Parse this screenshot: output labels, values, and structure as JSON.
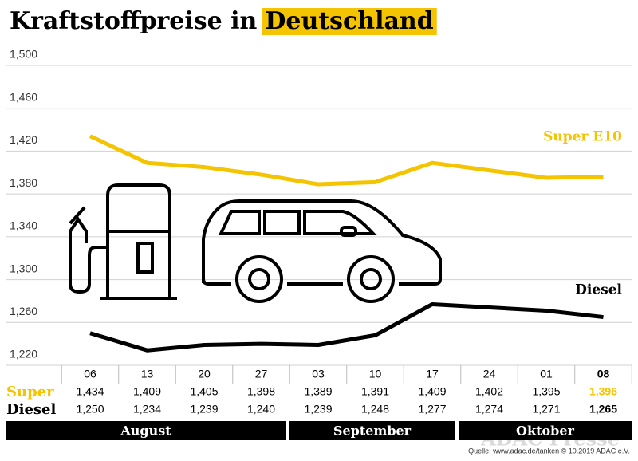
{
  "chart_data": {
    "type": "line",
    "title": "Kraftstoffpreise in",
    "title_highlight": "Deutschland",
    "categories": [
      "06",
      "13",
      "20",
      "27",
      "03",
      "10",
      "17",
      "24",
      "01",
      "08"
    ],
    "series": [
      {
        "name": "Super E10",
        "row_label": "Super",
        "color": "#f5c400",
        "values": [
          1.434,
          1.409,
          1.405,
          1.398,
          1.389,
          1.391,
          1.409,
          1.402,
          1.395,
          1.396
        ],
        "value_labels": [
          "1,434",
          "1,409",
          "1,405",
          "1,398",
          "1,389",
          "1,391",
          "1,409",
          "1,402",
          "1,395",
          "1,396"
        ]
      },
      {
        "name": "Diesel",
        "row_label": "Diesel",
        "color": "#000000",
        "values": [
          1.25,
          1.234,
          1.239,
          1.24,
          1.239,
          1.248,
          1.277,
          1.274,
          1.271,
          1.265
        ],
        "value_labels": [
          "1,250",
          "1,234",
          "1,239",
          "1,240",
          "1,239",
          "1,248",
          "1,277",
          "1,274",
          "1,271",
          "1,265"
        ]
      }
    ],
    "months": [
      "August",
      "September",
      "Oktober"
    ],
    "ylim": [
      1.22,
      1.5
    ],
    "yticks": [
      {
        "value": 1.5,
        "label": "1,500"
      },
      {
        "value": 1.46,
        "label": "1,460"
      },
      {
        "value": 1.42,
        "label": "1,420"
      },
      {
        "value": 1.38,
        "label": "1,380"
      },
      {
        "value": 1.34,
        "label": "1,340"
      },
      {
        "value": 1.3,
        "label": "1,300"
      },
      {
        "value": 1.26,
        "label": "1,260"
      },
      {
        "value": 1.22,
        "label": "1,220"
      }
    ],
    "grid": true,
    "source": "Quelle: www.adac.de/tanken  © 10.2019  ADAC e.V.",
    "watermark": "ADAC Presse"
  }
}
